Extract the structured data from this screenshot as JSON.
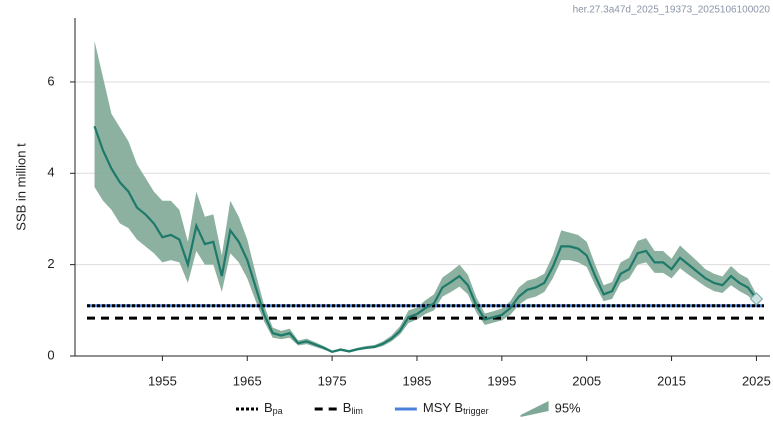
{
  "chart_data": {
    "type": "line",
    "title": "her.27.3a47d_2025_19373_2025106100020",
    "ylabel": "SSB in million t",
    "x": [
      1947,
      1948,
      1949,
      1950,
      1951,
      1952,
      1953,
      1954,
      1955,
      1956,
      1957,
      1958,
      1959,
      1960,
      1961,
      1962,
      1963,
      1964,
      1965,
      1966,
      1967,
      1968,
      1969,
      1970,
      1971,
      1972,
      1973,
      1974,
      1975,
      1976,
      1977,
      1978,
      1979,
      1980,
      1981,
      1982,
      1983,
      1984,
      1985,
      1986,
      1987,
      1988,
      1989,
      1990,
      1991,
      1992,
      1993,
      1994,
      1995,
      1996,
      1997,
      1998,
      1999,
      2000,
      2001,
      2002,
      2003,
      2004,
      2005,
      2006,
      2007,
      2008,
      2009,
      2010,
      2011,
      2012,
      2013,
      2014,
      2015,
      2016,
      2017,
      2018,
      2019,
      2020,
      2021,
      2022,
      2023,
      2024,
      2025
    ],
    "series": [
      {
        "name": "SSB",
        "color": "#1d7a6a",
        "values": [
          5.03,
          4.5,
          4.1,
          3.8,
          3.6,
          3.25,
          3.1,
          2.9,
          2.6,
          2.65,
          2.55,
          2.0,
          2.85,
          2.45,
          2.5,
          1.75,
          2.75,
          2.5,
          2.1,
          1.5,
          0.9,
          0.5,
          0.45,
          0.5,
          0.28,
          0.32,
          0.25,
          0.18,
          0.09,
          0.14,
          0.1,
          0.15,
          0.18,
          0.2,
          0.27,
          0.38,
          0.55,
          0.85,
          0.92,
          1.05,
          1.15,
          1.5,
          1.62,
          1.75,
          1.55,
          1.1,
          0.8,
          0.85,
          0.9,
          1.05,
          1.3,
          1.45,
          1.5,
          1.6,
          1.95,
          2.4,
          2.4,
          2.35,
          2.2,
          1.75,
          1.35,
          1.42,
          1.8,
          1.9,
          2.25,
          2.3,
          2.05,
          2.05,
          1.9,
          2.15,
          2.0,
          1.85,
          1.7,
          1.6,
          1.55,
          1.75,
          1.6,
          1.5,
          1.25
        ]
      }
    ],
    "band": {
      "name": "95%",
      "color": "#7fa896",
      "lower": [
        3.7,
        3.4,
        3.2,
        2.9,
        2.8,
        2.55,
        2.4,
        2.25,
        2.05,
        2.1,
        2.05,
        1.6,
        2.3,
        2.0,
        2.0,
        1.4,
        2.25,
        2.05,
        1.7,
        1.2,
        0.75,
        0.4,
        0.37,
        0.4,
        0.23,
        0.26,
        0.2,
        0.14,
        0.07,
        0.11,
        0.08,
        0.12,
        0.15,
        0.17,
        0.22,
        0.32,
        0.47,
        0.72,
        0.8,
        0.92,
        1.0,
        1.3,
        1.4,
        1.52,
        1.35,
        0.95,
        0.68,
        0.73,
        0.78,
        0.9,
        1.12,
        1.25,
        1.3,
        1.4,
        1.7,
        2.1,
        2.1,
        2.05,
        1.95,
        1.55,
        1.2,
        1.25,
        1.6,
        1.7,
        2.0,
        2.05,
        1.82,
        1.82,
        1.7,
        1.92,
        1.78,
        1.65,
        1.52,
        1.42,
        1.38,
        1.55,
        1.42,
        1.32,
        1.15
      ],
      "upper": [
        6.9,
        6.1,
        5.3,
        5.0,
        4.7,
        4.2,
        3.9,
        3.6,
        3.4,
        3.4,
        3.2,
        2.5,
        3.6,
        3.05,
        3.1,
        2.2,
        3.4,
        3.05,
        2.55,
        1.8,
        1.1,
        0.62,
        0.55,
        0.6,
        0.34,
        0.38,
        0.3,
        0.22,
        0.12,
        0.17,
        0.13,
        0.18,
        0.22,
        0.24,
        0.32,
        0.45,
        0.65,
        1.0,
        1.06,
        1.22,
        1.35,
        1.72,
        1.85,
        2.0,
        1.78,
        1.28,
        0.93,
        0.98,
        1.04,
        1.2,
        1.5,
        1.65,
        1.7,
        1.8,
        2.2,
        2.75,
        2.7,
        2.65,
        2.5,
        2.0,
        1.55,
        1.62,
        2.05,
        2.15,
        2.52,
        2.58,
        2.3,
        2.3,
        2.13,
        2.42,
        2.25,
        2.08,
        1.9,
        1.8,
        1.74,
        1.97,
        1.8,
        1.7,
        1.35
      ]
    },
    "reference_lines": [
      {
        "name": "B",
        "name_sub": "pa",
        "value": 1.1,
        "color": "#000000",
        "style": "dotted"
      },
      {
        "name": "B",
        "name_sub": "lim",
        "value": 0.83,
        "color": "#000000",
        "style": "dashed"
      },
      {
        "name": "MSY B",
        "name_sub": "trigger",
        "value": 1.1,
        "color": "#4a80d8",
        "style": "solid"
      }
    ],
    "xlim": [
      1944.7,
      2026.6
    ],
    "ylim": [
      0,
      7.4
    ],
    "xticks": [
      1955,
      1965,
      1975,
      1985,
      1995,
      2005,
      2015,
      2025
    ],
    "yticks": [
      0,
      2,
      4,
      6
    ],
    "grid": true
  }
}
